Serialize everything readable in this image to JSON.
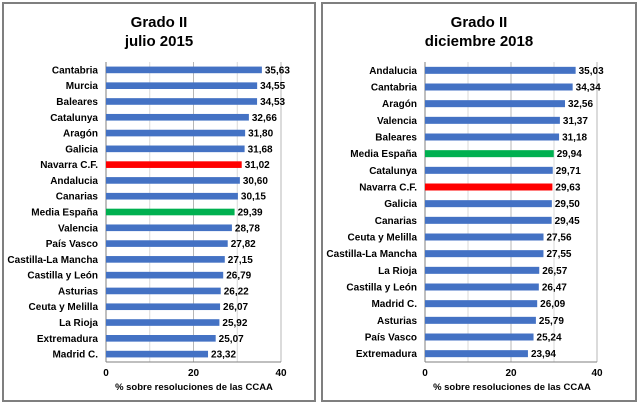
{
  "colors": {
    "default": "#4472c4",
    "highlight_red": "#ff0000",
    "highlight_green": "#00b050"
  },
  "chart_data": [
    {
      "type": "bar",
      "orientation": "horizontal",
      "title": "Grado II",
      "subtitle": "julio  2015",
      "xlabel": "% sobre resoluciones  de las CCAA",
      "xlim": [
        0,
        40
      ],
      "xticks": [
        "0",
        "20",
        "40"
      ],
      "grid": true,
      "categories": [
        "Cantabria",
        "Murcia",
        "Baleares",
        "Catalunya",
        "Aragón",
        "Galicia",
        "Navarra C.F.",
        "Andalucia",
        "Canarias",
        "Media España",
        "Valencia",
        "País Vasco",
        "Castilla-La Mancha",
        "Castilla y León",
        "Asturias",
        "Ceuta y Melilla",
        "La Rioja",
        "Extremadura",
        "Madrid  C."
      ],
      "values": [
        35.63,
        34.55,
        34.53,
        32.66,
        31.8,
        31.68,
        31.02,
        30.6,
        30.15,
        29.39,
        28.78,
        27.82,
        27.15,
        26.79,
        26.22,
        26.07,
        25.92,
        25.07,
        23.32
      ],
      "value_labels": [
        "35,63",
        "34,55",
        "34,53",
        "32,66",
        "31,80",
        "31,68",
        "31,02",
        "30,60",
        "30,15",
        "29,39",
        "28,78",
        "27,82",
        "27,15",
        "26,79",
        "26,22",
        "26,07",
        "25,92",
        "25,07",
        "23,32"
      ],
      "highlight": {
        "Navarra C.F.": "red",
        "Media España": "green"
      }
    },
    {
      "type": "bar",
      "orientation": "horizontal",
      "title": "Grado II",
      "subtitle": "diciembre 2018",
      "xlabel": "% sobre resoluciones  de las CCAA",
      "xlim": [
        0,
        40
      ],
      "xticks": [
        "0",
        "20",
        "40"
      ],
      "grid": true,
      "categories": [
        "Andalucia",
        "Cantabria",
        "Aragón",
        "Valencia",
        "Baleares",
        "Media España",
        "Catalunya",
        "Navarra C.F.",
        "Galicia",
        "Canarias",
        "Ceuta y Melilla",
        "Castilla-La Mancha",
        "La Rioja",
        "Castilla y León",
        "Madrid  C.",
        "Asturias",
        "País Vasco",
        "Extremadura"
      ],
      "values": [
        35.03,
        34.34,
        32.56,
        31.37,
        31.18,
        29.94,
        29.71,
        29.63,
        29.5,
        29.45,
        27.56,
        27.55,
        26.57,
        26.47,
        26.09,
        25.79,
        25.24,
        23.94
      ],
      "value_labels": [
        "35,03",
        "34,34",
        "32,56",
        "31,37",
        "31,18",
        "29,94",
        "29,71",
        "29,63",
        "29,50",
        "29,45",
        "27,56",
        "27,55",
        "26,57",
        "26,47",
        "26,09",
        "25,79",
        "25,24",
        "23,94"
      ],
      "highlight": {
        "Navarra C.F.": "red",
        "Media España": "green"
      }
    }
  ]
}
